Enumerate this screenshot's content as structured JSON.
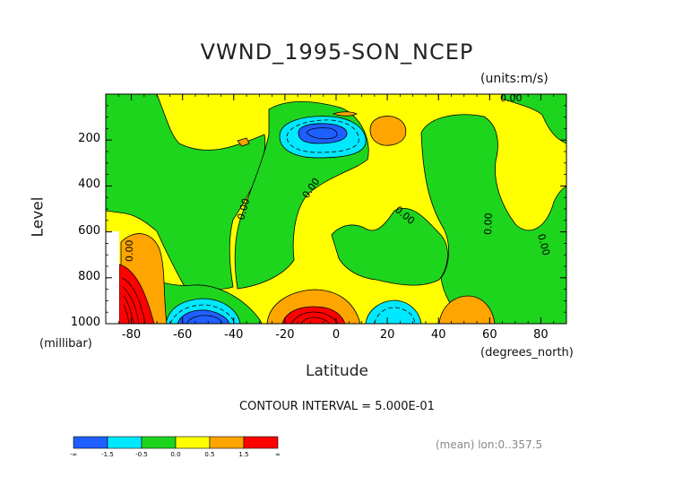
{
  "chart_data": {
    "type": "contour",
    "title": "VWND_1995-SON_NCEP",
    "units_label": "(units:m/s)",
    "xlabel": "Latitude",
    "x_unit_label": "(degrees_north)",
    "ylabel": "Level",
    "y_unit_label": "(millibar)",
    "xlim": [
      -90,
      90
    ],
    "ylim": [
      1000,
      0
    ],
    "x_ticks": [
      "-80",
      "-60",
      "-40",
      "-20",
      "0",
      "20",
      "40",
      "60",
      "80"
    ],
    "x_tick_values": [
      -80,
      -60,
      -40,
      -20,
      0,
      20,
      40,
      60,
      80
    ],
    "y_ticks": [
      "200",
      "400",
      "600",
      "800",
      "1000"
    ],
    "y_tick_values": [
      200,
      400,
      600,
      800,
      1000
    ],
    "contour_interval_text": "CONTOUR INTERVAL = 5.000E-01",
    "mean_note": "(mean) lon:0..357.5",
    "zero_contour_label": "0.00",
    "legend_bins": [
      {
        "label": "-∞",
        "color": "#1f5fff"
      },
      {
        "label": "-1.5",
        "color": "#00e8ff"
      },
      {
        "label": "-0.5",
        "color": "#1ed51e"
      },
      {
        "label": "0.0",
        "color": "#ffff00"
      },
      {
        "label": "0.5",
        "color": "#ffa500"
      },
      {
        "label": "1.5",
        "color": "#ff0000"
      },
      {
        "label": "∞",
        "color": ""
      }
    ],
    "colors": {
      "below_neg1_5": "#1f5fff",
      "neg1_5_to_neg0_5": "#00e8ff",
      "neg0_5_to_0": "#1ed51e",
      "0_to_0_5": "#ffff00",
      "0_5_to_1_5": "#ffa500",
      "above_1_5": "#ff0000"
    },
    "features": [
      {
        "sign": "negative",
        "level": "<-1.5",
        "lat": -8,
        "pressure": 180
      },
      {
        "sign": "negative",
        "level": "<-1.5",
        "lat": -55,
        "pressure": 980
      },
      {
        "sign": "positive",
        "level": ">1.5",
        "lat": -12,
        "pressure": 960
      },
      {
        "sign": "positive",
        "level": ">1.5",
        "lat": -85,
        "pressure": 900
      },
      {
        "sign": "positive",
        "level": "0.5-1.5",
        "lat": 24,
        "pressure": 160
      },
      {
        "sign": "positive",
        "level": "0.5-1.5",
        "lat": 55,
        "pressure": 960
      }
    ]
  }
}
